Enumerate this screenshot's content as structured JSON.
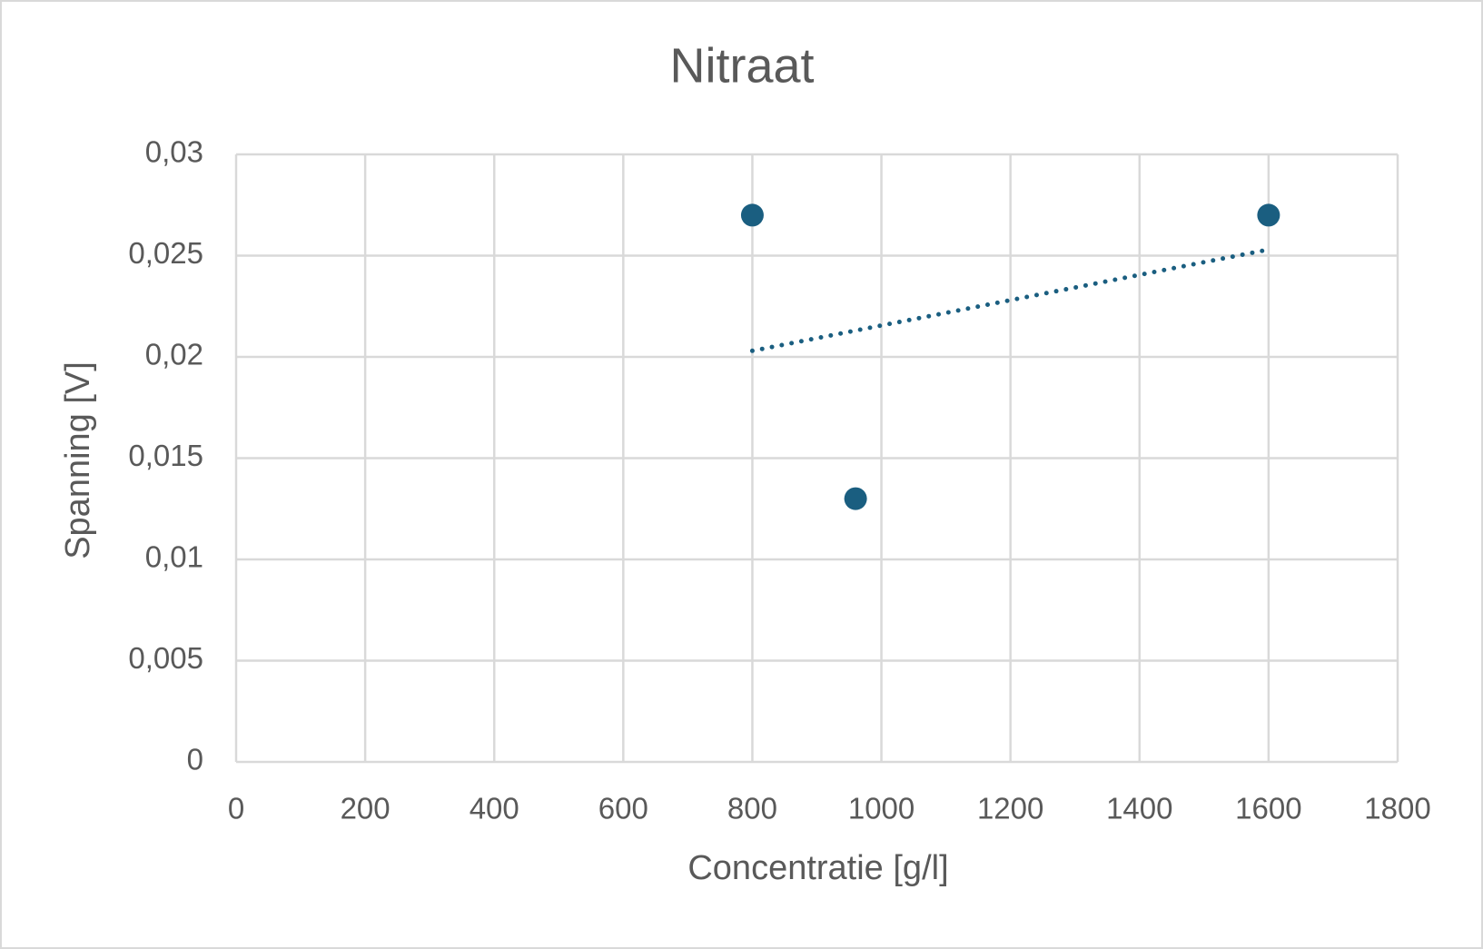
{
  "chart_data": {
    "type": "scatter",
    "title": "Nitraat",
    "x_label": "Concentratie [g/l]",
    "y_label": "Spanning [V]",
    "x": [
      800,
      960,
      1600
    ],
    "values": [
      0.027,
      0.013,
      0.027
    ],
    "color": "#1a5e80",
    "trendline": {
      "x": [
        800,
        1600
      ],
      "values": [
        0.0203,
        0.0253
      ],
      "style": "dotted"
    },
    "xlim": [
      0,
      1800
    ],
    "xticks": [
      0,
      200,
      400,
      600,
      800,
      1000,
      1200,
      1400,
      1600,
      1800
    ],
    "ylim": [
      0,
      0.03
    ],
    "yticks": [
      0,
      {
        "value": 0.005,
        "label": "0,005"
      },
      {
        "value": 0.01,
        "label": "0,01"
      },
      {
        "value": 0.015,
        "label": "0,015"
      },
      {
        "value": 0.02,
        "label": "0,02"
      },
      {
        "value": 0.025,
        "label": "0,025"
      },
      {
        "value": 0.03,
        "label": "0,03"
      }
    ],
    "grid": true
  }
}
